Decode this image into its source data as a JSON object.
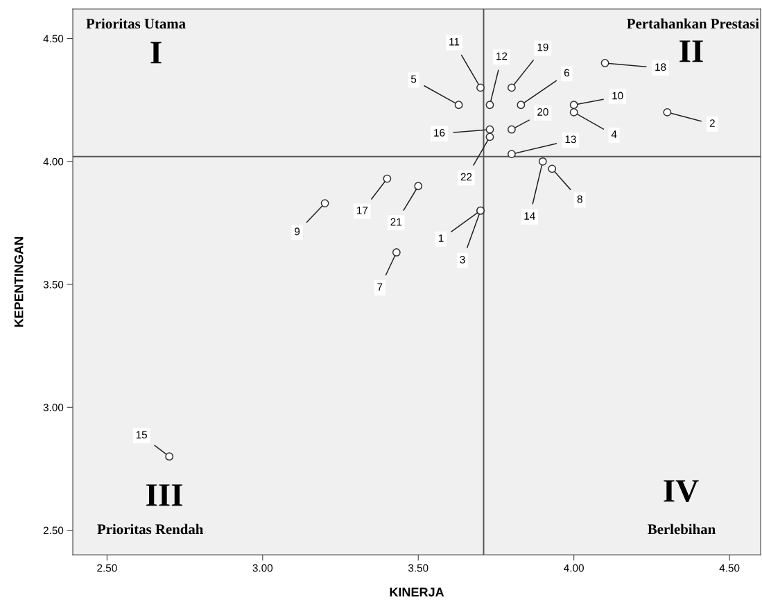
{
  "chart_data": {
    "type": "scatter",
    "xlabel": "KINERJA",
    "ylabel": "KEPENTINGAN",
    "x": [
      3.7,
      4.3,
      3.7,
      4.0,
      3.63,
      3.83,
      3.43,
      3.93,
      3.2,
      4.0,
      3.7,
      3.73,
      3.8,
      3.9,
      2.7,
      3.73,
      3.4,
      4.1,
      3.8,
      3.8,
      3.5,
      3.73
    ],
    "values": [
      3.8,
      4.2,
      3.8,
      4.2,
      4.23,
      4.23,
      3.63,
      3.97,
      3.83,
      4.23,
      4.3,
      4.23,
      4.03,
      4.0,
      2.8,
      4.13,
      3.93,
      4.4,
      4.3,
      4.13,
      3.9,
      4.1
    ],
    "color": "#333333",
    "marker": "circle",
    "xlim": [
      2.39,
      4.6
    ],
    "ylim": [
      2.4,
      4.62
    ],
    "xticks": [
      {
        "value": 2.5,
        "label": "2.50"
      },
      {
        "value": 3.0,
        "label": "3.00"
      },
      {
        "value": 3.5,
        "label": "3.50"
      },
      {
        "value": 4.0,
        "label": "4.00"
      },
      {
        "value": 4.5,
        "label": "4.50"
      }
    ],
    "yticks": [
      {
        "value": 2.5,
        "label": "2.50"
      },
      {
        "value": 3.0,
        "label": "3.00"
      },
      {
        "value": 3.5,
        "label": "3.50"
      },
      {
        "value": 4.0,
        "label": "4.00"
      },
      {
        "value": 4.5,
        "label": "4.50"
      }
    ],
    "ref_lines": [
      {
        "axis": "x",
        "value": 3.71,
        "color": "#555555"
      },
      {
        "axis": "y",
        "value": 4.02,
        "color": "#555555"
      }
    ],
    "annotations": [
      "Prioritas Utama",
      "I",
      "Pertahankan Prestasi",
      "II",
      "III",
      "Prioritas Rendah",
      "IV",
      "Berlebihan",
      {
        "text": "1",
        "x": 3.7,
        "y": 3.8
      },
      {
        "text": "2",
        "x": 4.3,
        "y": 4.2
      },
      {
        "text": "3",
        "x": 3.7,
        "y": 3.8
      },
      {
        "text": "4",
        "x": 4.0,
        "y": 4.2
      },
      {
        "text": "5",
        "x": 3.63,
        "y": 4.23
      },
      {
        "text": "6",
        "x": 3.83,
        "y": 4.23
      },
      {
        "text": "7",
        "x": 3.43,
        "y": 3.63
      },
      {
        "text": "8",
        "x": 3.93,
        "y": 3.97
      },
      {
        "text": "9",
        "x": 3.2,
        "y": 3.83
      },
      {
        "text": "10",
        "x": 4.0,
        "y": 4.23
      },
      {
        "text": "11",
        "x": 3.7,
        "y": 4.3
      },
      {
        "text": "12",
        "x": 3.73,
        "y": 4.23
      },
      {
        "text": "13",
        "x": 3.8,
        "y": 4.03
      },
      {
        "text": "14",
        "x": 3.9,
        "y": 4.0
      },
      {
        "text": "15",
        "x": 2.7,
        "y": 2.8
      },
      {
        "text": "16",
        "x": 3.73,
        "y": 4.13
      },
      {
        "text": "17",
        "x": 3.4,
        "y": 3.93
      },
      {
        "text": "18",
        "x": 4.1,
        "y": 4.4
      },
      {
        "text": "19",
        "x": 3.8,
        "y": 4.3
      },
      {
        "text": "20",
        "x": 3.8,
        "y": 4.13
      },
      {
        "text": "21",
        "x": 3.5,
        "y": 3.9
      },
      {
        "text": "22",
        "x": 3.73,
        "y": 4.1
      }
    ],
    "grid": false,
    "legend": false
  }
}
